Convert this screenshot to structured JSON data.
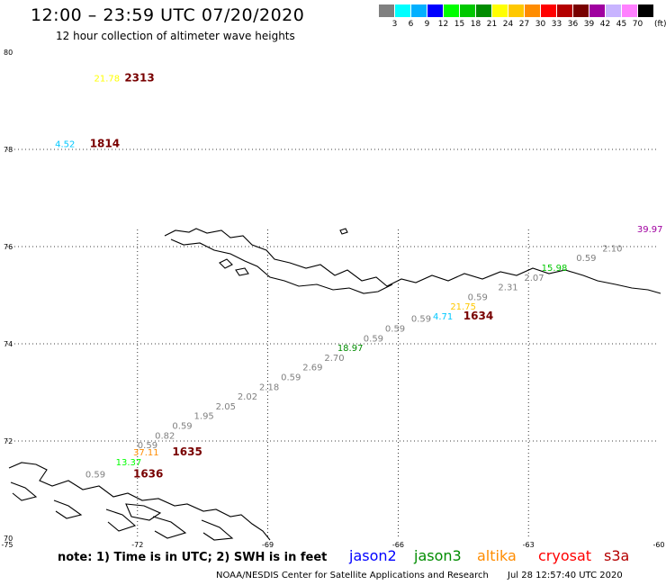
{
  "header": {
    "title": "12:00 – 23:59 UTC 07/20/2020",
    "subtitle": "12 hour collection of altimeter wave heights"
  },
  "legend": {
    "swatches": [
      {
        "label": "3",
        "color": "#808080"
      },
      {
        "label": "6",
        "color": "#00ffff"
      },
      {
        "label": "9",
        "color": "#00b0ff"
      },
      {
        "label": "12",
        "color": "#0000ff"
      },
      {
        "label": "15",
        "color": "#00ff00"
      },
      {
        "label": "18",
        "color": "#00c800"
      },
      {
        "label": "21",
        "color": "#008c00"
      },
      {
        "label": "24",
        "color": "#ffff00"
      },
      {
        "label": "27",
        "color": "#ffc800"
      },
      {
        "label": "30",
        "color": "#ff8c00"
      },
      {
        "label": "33",
        "color": "#ff0000"
      },
      {
        "label": "36",
        "color": "#b40000"
      },
      {
        "label": "39",
        "color": "#780000"
      },
      {
        "label": "42",
        "color": "#a000a0"
      },
      {
        "label": "45",
        "color": "#c8b4ff"
      },
      {
        "label": "70",
        "color": "#ff80ff"
      },
      {
        "label": "",
        "color": "#000000"
      }
    ],
    "unit": "(ft)"
  },
  "axes": {
    "lat_labels": [
      "80",
      "78",
      "76",
      "74",
      "72",
      "70"
    ],
    "lon_labels": [
      "-75",
      "-72",
      "-69",
      "-66",
      "-63",
      "-60"
    ]
  },
  "tracks": [
    {
      "label": "21.78",
      "color": "#ffff00",
      "lon": -73.0,
      "lat": 79.4
    },
    {
      "label": "2313",
      "color": "#780000",
      "lon": -72.3,
      "lat": 79.4,
      "time": true
    },
    {
      "label": "4.52",
      "color": "#00c8ff",
      "lon": -73.9,
      "lat": 78.05
    },
    {
      "label": "1814",
      "color": "#780000",
      "lon": -73.1,
      "lat": 78.05,
      "time": true
    },
    {
      "label": "39.97",
      "color": "#a000a0",
      "lon": -60.5,
      "lat": 76.3
    },
    {
      "label": "2.10",
      "color": "#808080",
      "lon": -61.3,
      "lat": 75.9
    },
    {
      "label": "0.59",
      "color": "#808080",
      "lon": -61.9,
      "lat": 75.7
    },
    {
      "label": "15.98",
      "color": "#00c800",
      "lon": -62.7,
      "lat": 75.5
    },
    {
      "label": "2.07",
      "color": "#808080",
      "lon": -63.1,
      "lat": 75.3
    },
    {
      "label": "2.31",
      "color": "#808080",
      "lon": -63.7,
      "lat": 75.1
    },
    {
      "label": "0.59",
      "color": "#808080",
      "lon": -64.4,
      "lat": 74.9
    },
    {
      "label": "21.75",
      "color": "#ffc800",
      "lon": -64.8,
      "lat": 74.7
    },
    {
      "label": "4.71",
      "color": "#00c8ff",
      "lon": -65.2,
      "lat": 74.5
    },
    {
      "label": "1634",
      "color": "#780000",
      "lon": -64.5,
      "lat": 74.5,
      "time": true
    },
    {
      "label": "0.59",
      "color": "#808080",
      "lon": -65.7,
      "lat": 74.45
    },
    {
      "label": "0.59",
      "color": "#808080",
      "lon": -66.3,
      "lat": 74.25
    },
    {
      "label": "0.59",
      "color": "#808080",
      "lon": -66.8,
      "lat": 74.05
    },
    {
      "label": "18.97",
      "color": "#008c00",
      "lon": -67.4,
      "lat": 73.85
    },
    {
      "label": "2.70",
      "color": "#808080",
      "lon": -67.7,
      "lat": 73.65
    },
    {
      "label": "2.69",
      "color": "#808080",
      "lon": -68.2,
      "lat": 73.45
    },
    {
      "label": "0.59",
      "color": "#808080",
      "lon": -68.7,
      "lat": 73.25
    },
    {
      "label": "2.18",
      "color": "#808080",
      "lon": -69.2,
      "lat": 73.05
    },
    {
      "label": "2.02",
      "color": "#808080",
      "lon": -69.7,
      "lat": 72.85
    },
    {
      "label": "2.05",
      "color": "#808080",
      "lon": -70.2,
      "lat": 72.65
    },
    {
      "label": "1.95",
      "color": "#808080",
      "lon": -70.7,
      "lat": 72.45
    },
    {
      "label": "0.59",
      "color": "#808080",
      "lon": -71.2,
      "lat": 72.25
    },
    {
      "label": "0.82",
      "color": "#808080",
      "lon": -71.6,
      "lat": 72.05
    },
    {
      "label": "0.59",
      "color": "#808080",
      "lon": -72.0,
      "lat": 71.85
    },
    {
      "label": "37.11",
      "color": "#ff8c00",
      "lon": -72.1,
      "lat": 71.7
    },
    {
      "label": "1635",
      "color": "#780000",
      "lon": -71.2,
      "lat": 71.7,
      "time": true
    },
    {
      "label": "13.37",
      "color": "#00ff00",
      "lon": -72.5,
      "lat": 71.5
    },
    {
      "label": "0.59",
      "color": "#808080",
      "lon": -73.2,
      "lat": 71.25
    },
    {
      "label": "1636",
      "color": "#780000",
      "lon": -72.1,
      "lat": 71.25,
      "time": true
    }
  ],
  "footer": {
    "note": "note:  1) Time is in UTC;  2) SWH is in feet",
    "satellites": [
      {
        "name": "jason2",
        "color": "#0000ff"
      },
      {
        "name": "jason3",
        "color": "#008c00"
      },
      {
        "name": "altika",
        "color": "#ff8c00"
      },
      {
        "name": "cryosat",
        "color": "#ff0000"
      },
      {
        "name": "s3a",
        "color": "#b40000"
      }
    ],
    "credit": "NOAA/NESDIS Center for Satellite Applications and Research",
    "timestamp": "Jul 28 12:57:40 UTC 2020"
  }
}
